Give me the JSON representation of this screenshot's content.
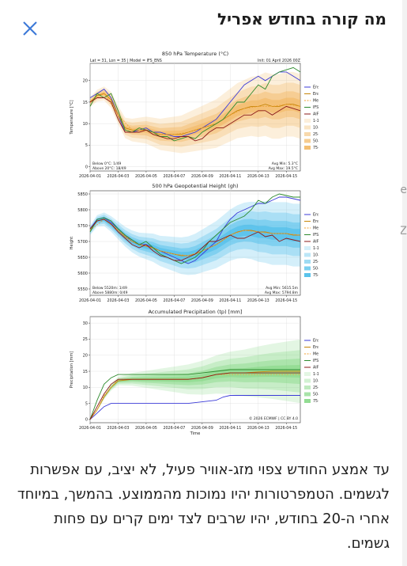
{
  "modal": {
    "title": "מה קורה בחודש אפריל",
    "description": "עד אמצע החודש צפוי מזג-אוויר פעיל, לא יציב, עם אפשרות לגשמים. הטמפרטורות יהיו נמוכות מהממוצע. בהמשך, במיוחד אחרי ה-20 בחודש, יהיו שרבים לצד ימים קרים עם פחות גשמים."
  },
  "background_peek": {
    "glyph1": "e",
    "glyph2": "Z"
  },
  "icons": {
    "close": "close-icon"
  },
  "colors": {
    "control": "#3b3bd8",
    "mean": "#c6860a",
    "median": "#f0a030",
    "ifs": "#2e8b2e",
    "aifs": "#8b1a1a"
  },
  "legend_labels": {
    "control": "Ensemble Control",
    "mean": "Ensemble Mean",
    "median": "Median",
    "ifs": "IFS Operational",
    "aifs": "AIFS Operational",
    "p1": "1-10%",
    "p2": "10-25%",
    "p3": "25-50%",
    "p4": "50-75%",
    "p5": "75-100%"
  },
  "chart_data": [
    {
      "type": "line",
      "title": "850 hPa Temperature (°C)",
      "header_left": "Lat = 31, Lon = 35 | Model = IFS_ENS",
      "header_right": "Init: 01 April 2026 00Z",
      "ylabel": "Temperature [°C]",
      "xlabel": "",
      "x_tick_labels": [
        "2026-04-01",
        "2026-04-03",
        "2026-04-05",
        "2026-04-07",
        "2026-04-09",
        "2026-04-11",
        "2026-04-13",
        "2026-04-15"
      ],
      "y_ticks": [
        0,
        5,
        10,
        15,
        20
      ],
      "ylim": [
        -1,
        24
      ],
      "xlim": [
        0,
        15
      ],
      "band_color": "#f2b45a",
      "note_bottom_left": [
        "Below 0°C: 1/49",
        "Above 20°C: 18/49"
      ],
      "note_bottom_right": [
        "Avg Min: 5.3°C",
        "Avg Max: 19.5°C"
      ],
      "series": [
        {
          "key": "control",
          "x": [
            0,
            0.5,
            1,
            1.5,
            2,
            2.5,
            3,
            3.5,
            4,
            4.5,
            5,
            5.5,
            6,
            6.5,
            7,
            7.5,
            8,
            8.5,
            9,
            9.5,
            10,
            10.5,
            11,
            11.5,
            12,
            12.5,
            13,
            13.5,
            14,
            14.5,
            15
          ],
          "values": [
            16,
            17,
            18,
            16,
            12,
            8,
            8,
            8.5,
            9,
            8,
            8,
            7.5,
            7,
            7,
            7.5,
            8,
            9,
            10,
            11,
            13,
            15,
            17,
            19,
            20,
            21,
            20,
            21,
            22,
            22,
            21,
            20
          ]
        },
        {
          "key": "mean",
          "x": [
            0,
            0.5,
            1,
            1.5,
            2,
            2.5,
            3,
            3.5,
            4,
            4.5,
            5,
            5.5,
            6,
            6.5,
            7,
            7.5,
            8,
            8.5,
            9,
            9.5,
            10,
            10.5,
            11,
            11.5,
            12,
            12.5,
            13,
            13.5,
            14,
            14.5,
            15
          ],
          "values": [
            15,
            16.5,
            17,
            15.5,
            12,
            9,
            8.5,
            8.5,
            8.5,
            8,
            7.5,
            7.5,
            7.5,
            7.5,
            8,
            8.5,
            9,
            9.5,
            10,
            11,
            12,
            13,
            13.5,
            14,
            14,
            14.5,
            14,
            14,
            14.5,
            14.5,
            14
          ]
        },
        {
          "key": "median",
          "x": [
            0,
            1,
            2,
            3,
            4,
            5,
            6,
            7,
            8,
            9,
            10,
            11,
            12,
            13,
            14,
            15
          ],
          "values": [
            15,
            17,
            12,
            8.5,
            8.5,
            7.5,
            7.5,
            8,
            9,
            10,
            12,
            13.5,
            14,
            14,
            14.5,
            14
          ]
        },
        {
          "key": "ifs",
          "x": [
            0,
            0.5,
            1,
            1.5,
            2,
            2.5,
            3,
            3.5,
            4,
            4.5,
            5,
            5.5,
            6,
            6.5,
            7,
            7.5,
            8,
            8.5,
            9,
            9.5,
            10,
            10.5,
            11,
            11.5,
            12,
            12.5,
            13,
            13.5,
            14,
            14.5,
            15
          ],
          "values": [
            14,
            17,
            16,
            17,
            13,
            8.5,
            8,
            9,
            8.5,
            8,
            7,
            7,
            6,
            6.5,
            7,
            6.5,
            8,
            9,
            10,
            11,
            13,
            15,
            15,
            17,
            19,
            18,
            21,
            22,
            22.5,
            23,
            22
          ]
        },
        {
          "key": "aifs",
          "x": [
            0,
            0.5,
            1,
            1.5,
            2,
            2.5,
            3,
            3.5,
            4,
            4.5,
            5,
            5.5,
            6,
            6.5,
            7,
            7.5,
            8,
            8.5,
            9,
            9.5,
            10,
            10.5,
            11,
            11.5,
            12,
            12.5,
            13,
            13.5,
            14,
            14.5,
            15
          ],
          "values": [
            15,
            16,
            16,
            15,
            11,
            8,
            8,
            8,
            8.5,
            7.5,
            7,
            6.5,
            6.5,
            7,
            7,
            6,
            6.5,
            8,
            9,
            9,
            10,
            11,
            12,
            12,
            13,
            13,
            12,
            13,
            14,
            13.5,
            13
          ]
        }
      ]
    },
    {
      "type": "line",
      "title": "500 hPa Geopotential Height (gh)",
      "ylabel": "Height",
      "xlabel": "",
      "x_tick_labels": [
        "2026-04-01",
        "2026-04-03",
        "2026-04-05",
        "2026-04-07",
        "2026-04-09",
        "2026-04-11",
        "2026-04-13",
        "2026-04-15"
      ],
      "y_ticks": [
        5550,
        5600,
        5650,
        5700,
        5750,
        5800,
        5850
      ],
      "ylim": [
        5530,
        5860
      ],
      "xlim": [
        0,
        15
      ],
      "band_color": "#3db8e8",
      "note_bottom_left": [
        "Below 5520m: 1/49",
        "Above 5880m: 0/49"
      ],
      "note_bottom_right": [
        "Avg Min: 5615.5m",
        "Avg Max: 5794.8m"
      ],
      "series": [
        {
          "key": "control",
          "x": [
            0,
            0.5,
            1,
            1.5,
            2,
            2.5,
            3,
            3.5,
            4,
            4.5,
            5,
            5.5,
            6,
            6.5,
            7,
            7.5,
            8,
            8.5,
            9,
            9.5,
            10,
            10.5,
            11,
            11.5,
            12,
            12.5,
            13,
            13.5,
            14,
            14.5,
            15
          ],
          "values": [
            5740,
            5770,
            5775,
            5760,
            5740,
            5720,
            5700,
            5690,
            5690,
            5680,
            5670,
            5660,
            5650,
            5640,
            5630,
            5640,
            5660,
            5680,
            5700,
            5740,
            5770,
            5790,
            5800,
            5810,
            5820,
            5820,
            5830,
            5840,
            5840,
            5835,
            5830
          ]
        },
        {
          "key": "mean",
          "x": [
            0,
            0.5,
            1,
            1.5,
            2,
            2.5,
            3,
            3.5,
            4,
            4.5,
            5,
            5.5,
            6,
            6.5,
            7,
            7.5,
            8,
            8.5,
            9,
            9.5,
            10,
            10.5,
            11,
            11.5,
            12,
            12.5,
            13,
            13.5,
            14,
            14.5,
            15
          ],
          "values": [
            5735,
            5765,
            5770,
            5755,
            5735,
            5715,
            5700,
            5690,
            5685,
            5680,
            5670,
            5665,
            5660,
            5655,
            5655,
            5660,
            5670,
            5680,
            5690,
            5705,
            5720,
            5730,
            5735,
            5735,
            5730,
            5730,
            5725,
            5725,
            5725,
            5720,
            5720
          ]
        },
        {
          "key": "median",
          "x": [
            0,
            1,
            2,
            3,
            4,
            5,
            6,
            7,
            8,
            9,
            10,
            11,
            12,
            13,
            14,
            15
          ],
          "values": [
            5735,
            5770,
            5735,
            5700,
            5685,
            5670,
            5660,
            5655,
            5670,
            5690,
            5720,
            5735,
            5730,
            5725,
            5725,
            5720
          ]
        },
        {
          "key": "ifs",
          "x": [
            0,
            0.5,
            1,
            1.5,
            2,
            2.5,
            3,
            3.5,
            4,
            4.5,
            5,
            5.5,
            6,
            6.5,
            7,
            7.5,
            8,
            8.5,
            9,
            9.5,
            10,
            10.5,
            11,
            11.5,
            12,
            12.5,
            13,
            13.5,
            14,
            14.5,
            15
          ],
          "values": [
            5730,
            5770,
            5775,
            5765,
            5740,
            5720,
            5705,
            5690,
            5700,
            5680,
            5660,
            5650,
            5640,
            5630,
            5640,
            5650,
            5670,
            5700,
            5720,
            5740,
            5760,
            5770,
            5780,
            5800,
            5830,
            5820,
            5840,
            5850,
            5845,
            5840,
            5840
          ]
        },
        {
          "key": "aifs",
          "x": [
            0,
            0.5,
            1,
            1.5,
            2,
            2.5,
            3,
            3.5,
            4,
            4.5,
            5,
            5.5,
            6,
            6.5,
            7,
            7.5,
            8,
            8.5,
            9,
            9.5,
            10,
            10.5,
            11,
            11.5,
            12,
            12.5,
            13,
            13.5,
            14,
            14.5,
            15
          ],
          "values": [
            5740,
            5765,
            5770,
            5755,
            5730,
            5710,
            5690,
            5680,
            5690,
            5670,
            5655,
            5650,
            5640,
            5640,
            5650,
            5660,
            5680,
            5700,
            5700,
            5710,
            5720,
            5710,
            5710,
            5720,
            5730,
            5715,
            5720,
            5700,
            5710,
            5705,
            5700
          ]
        }
      ]
    },
    {
      "type": "line",
      "title": "Accumulated Precipitation (tp) [mm]",
      "ylabel": "Precipitation [mm]",
      "xlabel": "Time",
      "x_tick_labels": [
        "2026-04-01",
        "2026-04-03",
        "2026-04-05",
        "2026-04-07",
        "2026-04-09",
        "2026-04-11",
        "2026-04-13",
        "2026-04-15"
      ],
      "y_ticks": [
        0,
        5,
        10,
        15,
        20,
        25,
        30
      ],
      "ylim": [
        -1,
        32
      ],
      "xlim": [
        0,
        15
      ],
      "band_color": "#7fd67f",
      "copyright": "© 2026 ECMWF | CC BY 4.0",
      "series": [
        {
          "key": "control",
          "x": [
            0,
            0.5,
            1,
            1.5,
            2,
            3,
            4,
            5,
            6,
            7,
            8,
            9,
            9.5,
            10,
            11,
            12,
            13,
            14,
            15
          ],
          "values": [
            0,
            2,
            4,
            5,
            5,
            5,
            5,
            5,
            5,
            5,
            5.5,
            6,
            7,
            7.5,
            7.5,
            7.5,
            7.5,
            7.5,
            7.5
          ]
        },
        {
          "key": "mean",
          "x": [
            0,
            0.5,
            1,
            1.5,
            2,
            3,
            4,
            5,
            6,
            7,
            8,
            9,
            10,
            11,
            12,
            13,
            14,
            15
          ],
          "values": [
            0,
            3,
            7,
            10,
            12,
            12.5,
            12.5,
            12.5,
            12.5,
            12.5,
            13,
            14,
            14.5,
            14.5,
            14.8,
            15,
            15,
            15
          ]
        },
        {
          "key": "median",
          "x": [
            0,
            0.5,
            1,
            1.5,
            2,
            3,
            4,
            5,
            6,
            7,
            8,
            9,
            10,
            11,
            12,
            13,
            14,
            15
          ],
          "values": [
            0,
            3,
            7.5,
            10,
            12.5,
            12.5,
            12.5,
            12.5,
            12.5,
            12.5,
            13,
            14,
            14,
            14,
            14,
            14,
            14,
            14
          ]
        },
        {
          "key": "ifs",
          "x": [
            0,
            0.5,
            1,
            1.5,
            2,
            3,
            4,
            5,
            6,
            7,
            8,
            9,
            10,
            11,
            12,
            13,
            14,
            15
          ],
          "values": [
            0,
            6,
            11,
            13,
            14,
            14,
            14,
            14,
            14,
            14,
            14.5,
            15,
            15.5,
            15.5,
            15.5,
            15.5,
            15.5,
            15.5
          ]
        },
        {
          "key": "aifs",
          "x": [
            0,
            0.5,
            1,
            1.5,
            2,
            3,
            4,
            5,
            6,
            7,
            8,
            9,
            10,
            11,
            12,
            13,
            14,
            15
          ],
          "values": [
            0,
            4,
            8,
            11,
            12.5,
            12.5,
            12.5,
            12.5,
            12.5,
            12.5,
            13,
            14,
            14.5,
            14.5,
            14.5,
            14.5,
            14.5,
            14.5
          ]
        }
      ]
    }
  ]
}
